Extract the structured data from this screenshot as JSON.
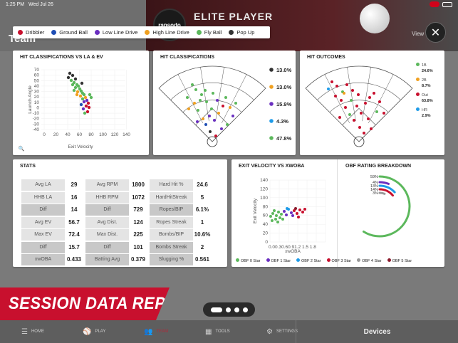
{
  "status_bar": {
    "time": "1:25 PM",
    "date": "Wed Jul 26"
  },
  "background": {
    "section_title": "Team",
    "logo_text": "rapsodo",
    "player_name": "ELITE PLAYER",
    "view_label": "View"
  },
  "legend": [
    {
      "label": "Dribbler",
      "color": "#c8102e"
    },
    {
      "label": "Ground Ball",
      "color": "#1f4eb4"
    },
    {
      "label": "Low Line Drive",
      "color": "#6a2fc0"
    },
    {
      "label": "High Line Drive",
      "color": "#f0a020"
    },
    {
      "label": "Fly Ball",
      "color": "#5cb85c"
    },
    {
      "label": "Pop Up",
      "color": "#333333"
    }
  ],
  "panels": {
    "la_ev_title": "HIT CLASSIFICATIONS VS LA & EV",
    "hit_class_title": "HIT CLASSIFICATIONS",
    "hit_outcomes_title": "HIT OUTCOMES",
    "stats_title": "STATS",
    "ev_xwoba_title": "EXIT VELOCITY VS XWOBA",
    "obf_title": "OBF RATING BREAKDOWN"
  },
  "la_ev_chart": {
    "ylabel": "Launch Angle",
    "xlabel": "Exit Velocity",
    "y_ticks": [
      "70",
      "60",
      "50",
      "40",
      "30",
      "20",
      "10",
      "0",
      "-10",
      "-20",
      "-30",
      "-40"
    ],
    "x_ticks": [
      "0",
      "20",
      "40",
      "60",
      "80",
      "100",
      "120",
      "140"
    ]
  },
  "hit_class_pct": [
    {
      "value": "13.0%",
      "color": "#333333"
    },
    {
      "value": "13.0%",
      "color": "#f0a020"
    },
    {
      "value": "15.9%",
      "color": "#6a2fc0"
    },
    {
      "value": "4.3%",
      "color": "#1e9be8"
    },
    {
      "value": "47.8%",
      "color": "#5cb85c"
    }
  ],
  "hit_outcomes": [
    {
      "label": "1B",
      "value": "24.6%",
      "color": "#5cb85c"
    },
    {
      "label": "2B",
      "value": "8.7%",
      "color": "#f0a020"
    },
    {
      "label": "Out",
      "value": "63.8%",
      "color": "#c8102e"
    },
    {
      "label": "HR",
      "value": "2.9%",
      "color": "#1e9be8"
    }
  ],
  "stats": [
    [
      "Avg LA",
      "29",
      "Avg RPM",
      "1800",
      "Hard Hit %",
      "24.6"
    ],
    [
      "HHB LA",
      "16",
      "HHB RPM",
      "1072",
      "HardHitStreak",
      "5"
    ],
    [
      "Diff",
      "14",
      "Diff",
      "729",
      "Ropes/BIP",
      "6.1%"
    ],
    [
      "Avg EV",
      "56.7",
      "Avg Dist.",
      "124",
      "Ropes Streak",
      "1"
    ],
    [
      "Max EV",
      "72.4",
      "Max Dist.",
      "225",
      "Bombs/BIP",
      "10.6%"
    ],
    [
      "Diff",
      "15.7",
      "Diff",
      "101",
      "Bombs Streak",
      "2"
    ],
    [
      "xwOBA",
      "0.433",
      "Batting Avg",
      "0.379",
      "Slugging %",
      "0.561"
    ]
  ],
  "ev_xwoba_chart": {
    "ylabel": "Exit Velocity",
    "xlabel": "xwOBA",
    "y_ticks": [
      "140",
      "120",
      "100",
      "80",
      "60",
      "40",
      "20",
      "0"
    ],
    "x_ticks": "0.00.30.60.91.2 1.5 1.8"
  },
  "obf_breakdown": {
    "labels": [
      "59%",
      "4%",
      "13%",
      "14%",
      "3%"
    ]
  },
  "obf_legend": [
    {
      "label": "OBF 0 Star",
      "color": "#5cb85c"
    },
    {
      "label": "OBF 1 Star",
      "color": "#6a2fc0"
    },
    {
      "label": "OBF 2 Star",
      "color": "#1e9be8"
    },
    {
      "label": "OBF 3 Star",
      "color": "#c8102e"
    },
    {
      "label": "OBF 4 Star",
      "color": "#999999"
    },
    {
      "label": "OBF 5 Star",
      "color": "#8b1a2b"
    }
  ],
  "banner_text": "SESSION DATA REPORTS",
  "bottom_nav": [
    {
      "label": "HOME",
      "icon": "home-icon",
      "active": false
    },
    {
      "label": "PLAY",
      "icon": "baseball-icon",
      "active": false
    },
    {
      "label": "TEAM",
      "icon": "team-icon",
      "active": true
    },
    {
      "label": "TOOLS",
      "icon": "tools-icon",
      "active": false
    },
    {
      "label": "SETTINGS",
      "icon": "settings-icon",
      "active": false
    }
  ],
  "devices_label": "Devices"
}
